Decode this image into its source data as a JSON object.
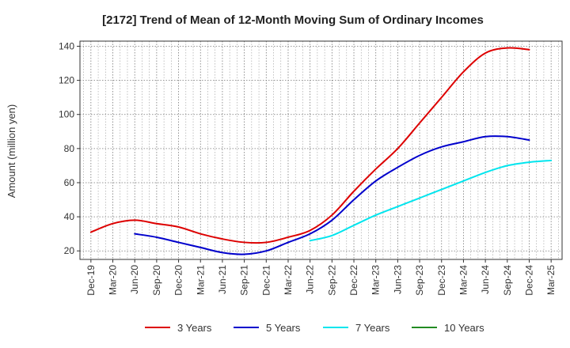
{
  "chart_data": {
    "type": "line",
    "title": "[2172]  Trend of Mean of 12-Month Moving Sum of Ordinary Incomes",
    "xlabel": "",
    "ylabel": "Amount (million yen)",
    "ylim": [
      15,
      143
    ],
    "yticks": [
      20,
      40,
      60,
      80,
      100,
      120,
      140
    ],
    "grid": true,
    "legend_position": "bottom",
    "x_tick_labels": [
      "Dec-19",
      "Mar-20",
      "Jun-20",
      "Sep-20",
      "Dec-20",
      "Mar-21",
      "Jun-21",
      "Sep-21",
      "Dec-21",
      "Mar-22",
      "Jun-22",
      "Sep-22",
      "Dec-22",
      "Mar-23",
      "Jun-23",
      "Sep-23",
      "Dec-23",
      "Mar-24",
      "Jun-24",
      "Sep-24",
      "Dec-24",
      "Mar-25"
    ],
    "series": [
      {
        "name": "3 Years",
        "color": "#dd0000",
        "start_index": 0,
        "values": [
          31,
          36,
          38,
          36,
          34,
          30,
          27,
          25,
          25,
          28,
          32,
          41,
          55,
          68,
          80,
          95,
          110,
          125,
          136,
          139,
          138
        ]
      },
      {
        "name": "5 Years",
        "color": "#0000cc",
        "start_index": 2,
        "values": [
          30,
          28,
          25,
          22,
          19,
          18,
          20,
          25,
          30,
          38,
          50,
          61,
          69,
          76,
          81,
          84,
          87,
          87,
          85
        ]
      },
      {
        "name": "7 Years",
        "color": "#00e5ee",
        "start_index": 10,
        "values": [
          26,
          29,
          35,
          41,
          46,
          51,
          56,
          61,
          66,
          70,
          72,
          73
        ]
      },
      {
        "name": "10 Years",
        "color": "#228b22",
        "start_index": 0,
        "values": []
      }
    ]
  }
}
